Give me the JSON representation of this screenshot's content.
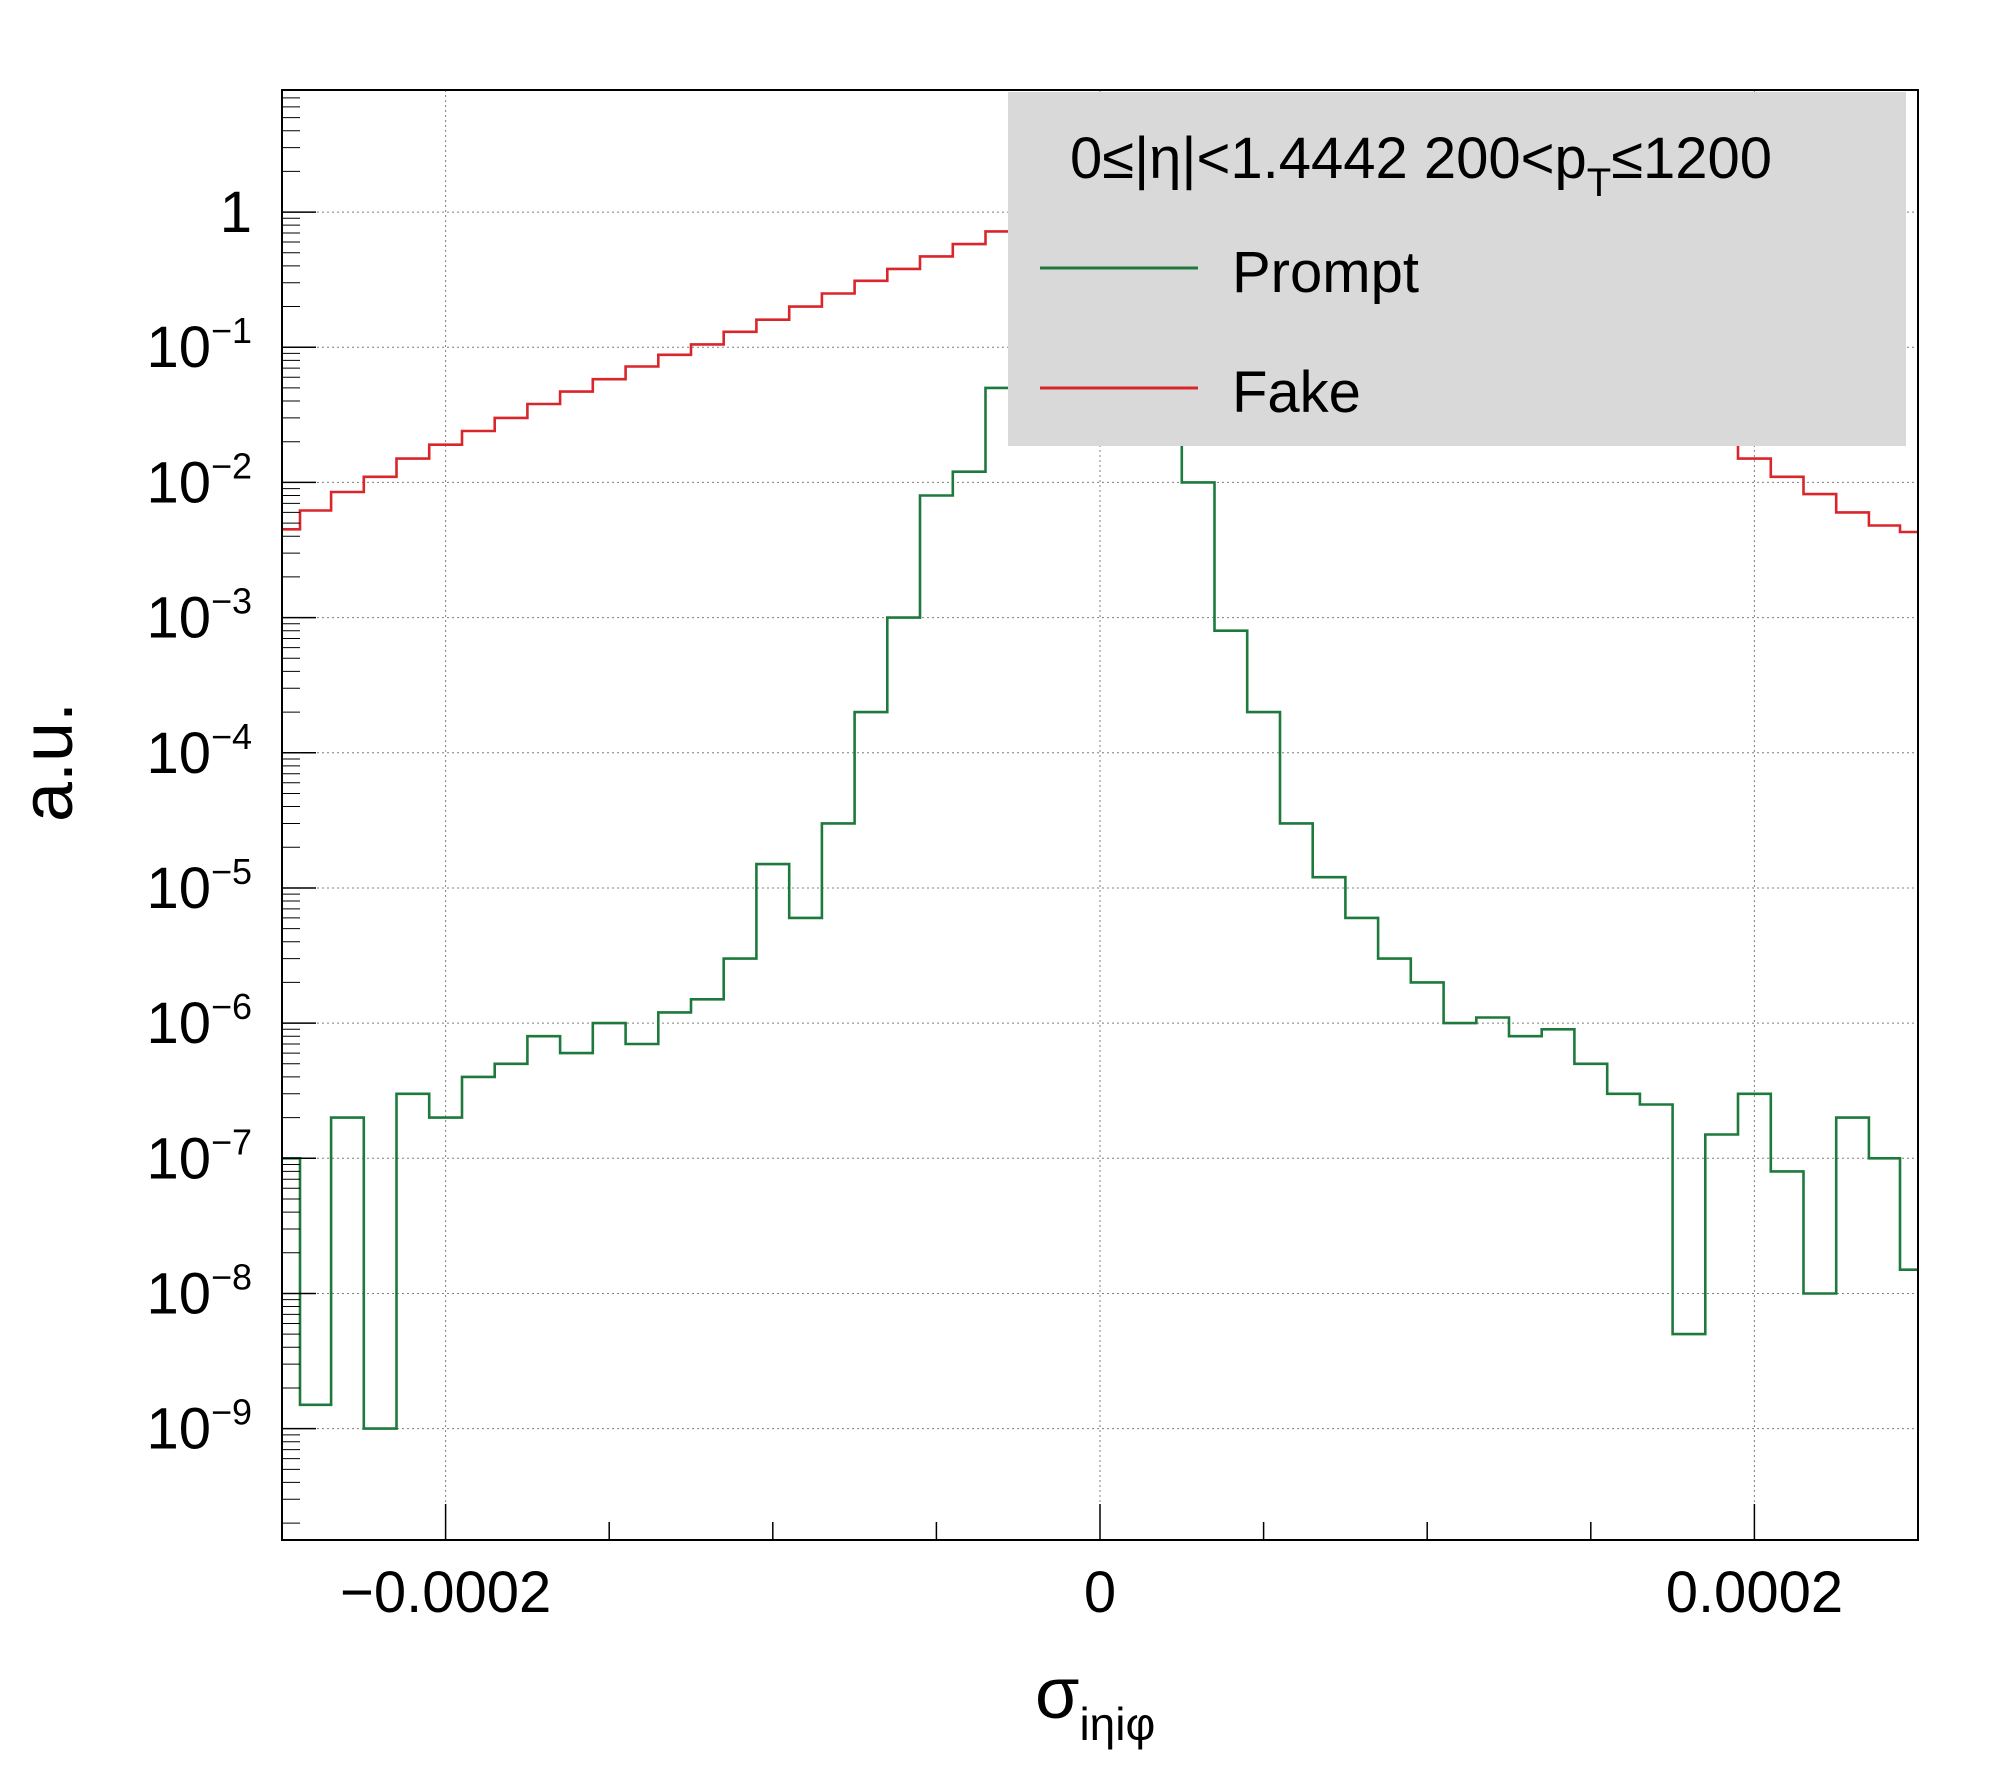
{
  "chart_data": {
    "type": "line",
    "style": "step-histogram",
    "xlabel": "σ",
    "xlabel_sub": "iηiφ",
    "ylabel": "a.u.",
    "xlim": [
      -0.00025,
      0.00025
    ],
    "ylim": [
      1.5e-10,
      8
    ],
    "yscale": "log",
    "grid": true,
    "x_ticks": [
      {
        "value": -0.0002,
        "label": "−0.0002"
      },
      {
        "value": 0,
        "label": "0"
      },
      {
        "value": 0.0002,
        "label": "0.0002"
      }
    ],
    "y_ticks": [
      {
        "value": 1,
        "label": "1",
        "exp": ""
      },
      {
        "value": 0.1,
        "label": "10",
        "exp": "−1"
      },
      {
        "value": 0.01,
        "label": "10",
        "exp": "−2"
      },
      {
        "value": 0.001,
        "label": "10",
        "exp": "−3"
      },
      {
        "value": 0.0001,
        "label": "10",
        "exp": "−4"
      },
      {
        "value": 1e-05,
        "label": "10",
        "exp": "−5"
      },
      {
        "value": 1e-06,
        "label": "10",
        "exp": "−6"
      },
      {
        "value": 1e-07,
        "label": "10",
        "exp": "−7"
      },
      {
        "value": 1e-08,
        "label": "10",
        "exp": "−8"
      },
      {
        "value": 1e-09,
        "label": "10",
        "exp": "−9"
      }
    ],
    "legend": {
      "placement": "top-right",
      "header": {
        "a": "0≤|η|<1.4442  200<p",
        "sub": "T",
        "b": "≤1200"
      }
    },
    "series": [
      {
        "name": "Prompt",
        "color": "#1e7a3c",
        "x": [
          -0.000249,
          -0.00024,
          -0.00023,
          -0.00022,
          -0.00021,
          -0.0002,
          -0.00019,
          -0.00018,
          -0.00017,
          -0.00016,
          -0.00015,
          -0.00014,
          -0.00013,
          -0.00012,
          -0.00011,
          -0.0001,
          -9e-05,
          -8e-05,
          -7e-05,
          -6e-05,
          -5e-05,
          -4e-05,
          -3e-05,
          -2e-05,
          -1e-05,
          0,
          1e-05,
          2e-05,
          3e-05,
          4e-05,
          5e-05,
          6e-05,
          7e-05,
          8e-05,
          9e-05,
          0.0001,
          0.00011,
          0.00012,
          0.00013,
          0.00014,
          0.00015,
          0.00016,
          0.00017,
          0.00018,
          0.00019,
          0.0002,
          0.00021,
          0.00022,
          0.00023,
          0.00024,
          0.000249
        ],
        "y": [
          1e-07,
          1.5e-09,
          2e-07,
          1e-09,
          3e-07,
          2e-07,
          4e-07,
          5e-07,
          8e-07,
          6e-07,
          1e-06,
          7e-07,
          1.2e-06,
          1.5e-06,
          3e-06,
          1.5e-05,
          6e-06,
          3e-05,
          0.0002,
          0.001,
          0.008,
          0.012,
          0.05,
          0.16,
          0.9,
          7,
          1.2,
          0.3,
          0.01,
          0.0008,
          0.0002,
          3e-05,
          1.2e-05,
          6e-06,
          3e-06,
          2e-06,
          1e-06,
          1.1e-06,
          8e-07,
          9e-07,
          5e-07,
          3e-07,
          2.5e-07,
          5e-09,
          1.5e-07,
          3e-07,
          8e-08,
          1e-08,
          2e-07,
          1e-07,
          1.5e-08
        ]
      },
      {
        "name": "Fake",
        "color": "#d9262a",
        "x": [
          -0.000249,
          -0.00024,
          -0.00023,
          -0.00022,
          -0.00021,
          -0.0002,
          -0.00019,
          -0.00018,
          -0.00017,
          -0.00016,
          -0.00015,
          -0.00014,
          -0.00013,
          -0.00012,
          -0.00011,
          -0.0001,
          -9e-05,
          -8e-05,
          -7e-05,
          -6e-05,
          -5e-05,
          -4e-05,
          -3e-05,
          -2e-05,
          -1e-05,
          0,
          1e-05,
          2e-05,
          3e-05,
          4e-05,
          5e-05,
          6e-05,
          7e-05,
          8e-05,
          9e-05,
          0.0001,
          0.00011,
          0.00012,
          0.00013,
          0.00014,
          0.00015,
          0.00016,
          0.00017,
          0.00018,
          0.00019,
          0.0002,
          0.00021,
          0.00022,
          0.00023,
          0.00024,
          0.000249
        ],
        "y": [
          0.0045,
          0.0062,
          0.0085,
          0.011,
          0.015,
          0.019,
          0.024,
          0.03,
          0.038,
          0.047,
          0.058,
          0.072,
          0.088,
          0.105,
          0.13,
          0.16,
          0.2,
          0.25,
          0.31,
          0.38,
          0.47,
          0.58,
          0.72,
          0.88,
          1.0,
          1.08,
          1.02,
          0.9,
          0.78,
          0.66,
          0.55,
          0.45,
          0.37,
          0.3,
          0.24,
          0.19,
          0.15,
          0.12,
          0.095,
          0.075,
          0.058,
          0.045,
          0.034,
          0.026,
          0.02,
          0.015,
          0.011,
          0.0082,
          0.006,
          0.0048,
          0.0043
        ]
      }
    ]
  }
}
